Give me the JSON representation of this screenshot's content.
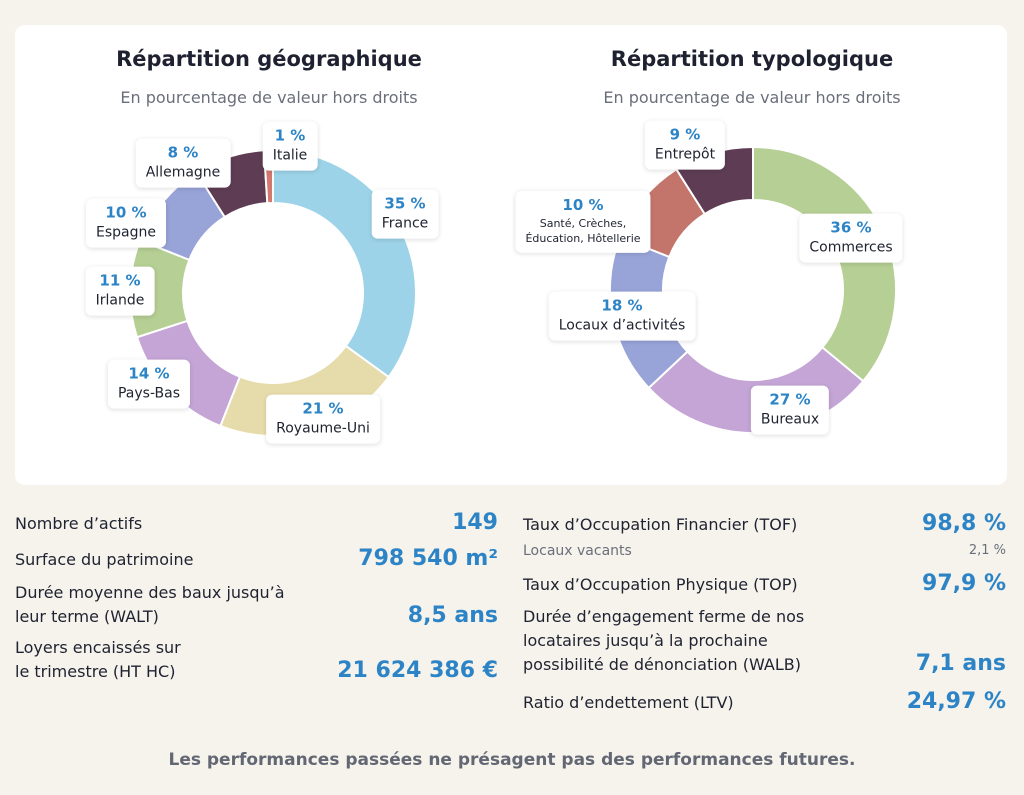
{
  "chart_data": [
    {
      "type": "pie",
      "title": "Répartition géographique",
      "subtitle": "En pourcentage de valeur hors droits",
      "unit": "%",
      "categories": [
        "France",
        "Royaume-Uni",
        "Pays-Bas",
        "Irlande",
        "Espagne",
        "Allemagne",
        "Italie"
      ],
      "values": [
        35,
        21,
        14,
        11,
        10,
        8,
        1
      ],
      "labels": [
        "35 %",
        "21 %",
        "14 %",
        "11 %",
        "10 %",
        "8 %",
        "1 %"
      ],
      "colors": [
        "#9dd3e8",
        "#e6dcab",
        "#c4a5d6",
        "#b5cf94",
        "#98a4d8",
        "#5e3d54",
        "#d2786f"
      ]
    },
    {
      "type": "pie",
      "title": "Répartition typologique",
      "subtitle": "En pourcentage de valeur hors droits",
      "unit": "%",
      "categories": [
        "Commerces",
        "Bureaux",
        "Locaux d’activités",
        "Santé, Crèches, Éducation, Hôtellerie",
        "Entrepôt"
      ],
      "values": [
        36,
        27,
        18,
        10,
        9
      ],
      "labels": [
        "36 %",
        "27 %",
        "18 %",
        "10 %",
        "9 %"
      ],
      "colors": [
        "#b5cf94",
        "#c4a5d6",
        "#98a4d8",
        "#c4756b",
        "#5e3d54"
      ]
    }
  ],
  "geo_labels": [
    {
      "pct": "35 %",
      "name": "France"
    },
    {
      "pct": "21 %",
      "name": "Royaume-Uni"
    },
    {
      "pct": "14 %",
      "name": "Pays-Bas"
    },
    {
      "pct": "11 %",
      "name": "Irlande"
    },
    {
      "pct": "10 %",
      "name": "Espagne"
    },
    {
      "pct": "8 %",
      "name": "Allemagne"
    },
    {
      "pct": "1 %",
      "name": "Italie"
    }
  ],
  "typo_labels": [
    {
      "pct": "36 %",
      "name": "Commerces"
    },
    {
      "pct": "27 %",
      "name": "Bureaux"
    },
    {
      "pct": "18 %",
      "name": "Locaux d’activités"
    },
    {
      "pct": "10 %",
      "name_line1": "Santé, Crèches,",
      "name_line2": "Éducation, Hôtellerie"
    },
    {
      "pct": "9 %",
      "name": "Entrepôt"
    }
  ],
  "kpis_left": [
    {
      "label": "Nombre d’actifs",
      "value": "149"
    },
    {
      "label": "Surface du patrimoine",
      "value": "798 540 m²"
    },
    {
      "label_line1": "Durée moyenne des baux jusqu’à",
      "label_line2": "leur terme (WALT)",
      "value": "8,5 ans"
    },
    {
      "label_line1": "Loyers encaissés sur",
      "label_line2": "le trimestre (HT HC)",
      "value": "21 624 386 €"
    }
  ],
  "kpis_right": [
    {
      "label": "Taux d’Occupation Financier (TOF)",
      "value": "98,8 %"
    },
    {
      "label": "Locaux vacants",
      "value": "2,1 %"
    },
    {
      "label": "Taux d’Occupation Physique (TOP)",
      "value": "97,9 %"
    },
    {
      "label_line1": "Durée d’engagement ferme de nos",
      "label_line2": "locataires jusqu’à la prochaine",
      "label_line3": "possibilité de dénonciation (WALB)",
      "value": "7,1 ans"
    },
    {
      "label": "Ratio d’endettement (LTV)",
      "value": "24,97 %"
    }
  ],
  "disclaimer": "Les performances passées ne présagent pas des performances futures."
}
